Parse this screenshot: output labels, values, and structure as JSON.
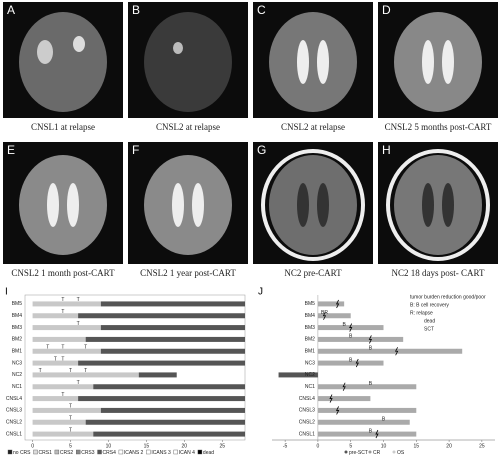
{
  "panels": [
    {
      "letter": "A",
      "caption": "CNSL1 at relapse"
    },
    {
      "letter": "B",
      "caption": "CNSL2 at relapse"
    },
    {
      "letter": "C",
      "caption": "CNSL2 at relapse"
    },
    {
      "letter": "D",
      "caption": "CNSL2 5 months post-CART"
    },
    {
      "letter": "E",
      "caption": "CNSL2 1 month post-CART"
    },
    {
      "letter": "F",
      "caption": "CNSL2 1 year post-CART"
    },
    {
      "letter": "G",
      "caption": "NC2 pre-CART"
    },
    {
      "letter": "H",
      "caption": "NC2  18 days post- CART"
    }
  ],
  "plot_i": {
    "letter": "I",
    "xlim": [
      -1,
      28
    ],
    "xticks": [
      0,
      5,
      10,
      15,
      20,
      25
    ],
    "rows": [
      {
        "label": "BM5",
        "crs": 9,
        "total": 28,
        "marks": [
          {
            "x": 4,
            "label": "T"
          },
          {
            "x": 6,
            "label": "T"
          }
        ]
      },
      {
        "label": "BM4",
        "crs": 6,
        "total": 28,
        "marks": [
          {
            "x": 4,
            "label": "T"
          }
        ]
      },
      {
        "label": "BM3",
        "crs": 9,
        "total": 28,
        "marks": [
          {
            "x": 6,
            "label": "T"
          }
        ]
      },
      {
        "label": "BM2",
        "crs": 7,
        "total": 28,
        "marks": []
      },
      {
        "label": "BM1",
        "crs": 9,
        "total": 28,
        "marks": [
          {
            "x": 2,
            "label": "T"
          },
          {
            "x": 4,
            "label": "T"
          },
          {
            "x": 7,
            "label": "T"
          }
        ]
      },
      {
        "label": "NC3",
        "crs": 6,
        "total": 28,
        "marks": [
          {
            "x": 3,
            "label": "T"
          },
          {
            "x": 4,
            "label": "T"
          }
        ]
      },
      {
        "label": "NC2",
        "crs": 14,
        "total": 19,
        "marks": [
          {
            "x": 1,
            "label": "T"
          },
          {
            "x": 5,
            "label": "T"
          },
          {
            "x": 7,
            "label": "T"
          }
        ]
      },
      {
        "label": "NC1",
        "crs": 8,
        "total": 28,
        "marks": [
          {
            "x": 6,
            "label": "T"
          }
        ]
      },
      {
        "label": "CNSL4",
        "crs": 6,
        "total": 28,
        "marks": [
          {
            "x": 4,
            "label": "T"
          }
        ]
      },
      {
        "label": "CNSL3",
        "crs": 9,
        "total": 28,
        "marks": [
          {
            "x": 5,
            "label": "T"
          }
        ]
      },
      {
        "label": "CNSL2",
        "crs": 7,
        "total": 28,
        "marks": [
          {
            "x": 5,
            "label": "T"
          }
        ]
      },
      {
        "label": "CNSL1",
        "crs": 8,
        "total": 28,
        "marks": [
          {
            "x": 5,
            "label": "T"
          }
        ]
      }
    ],
    "legend": [
      "no CRS",
      "CRS1",
      "CRS2",
      "CRS3",
      "CRS4",
      "ICANS 2",
      "ICANS 3",
      "ICAN 4",
      "dead"
    ]
  },
  "plot_j": {
    "letter": "J",
    "xlim": [
      -7,
      27
    ],
    "xticks": [
      -5,
      0,
      5,
      10,
      15,
      20,
      25
    ],
    "rows": [
      {
        "label": "BM5",
        "value": 4,
        "sct": 3,
        "marks": []
      },
      {
        "label": "BM4",
        "value": 5,
        "sct": 1,
        "marks": [
          {
            "x": 1,
            "label": "BR"
          }
        ]
      },
      {
        "label": "BM3",
        "value": 10,
        "sct": 5,
        "marks": [
          {
            "x": 4,
            "label": "B"
          }
        ]
      },
      {
        "label": "BM2",
        "value": 13,
        "sct": 8,
        "marks": [
          {
            "x": 5,
            "label": "B"
          }
        ]
      },
      {
        "label": "BM1",
        "value": 22,
        "sct": 12,
        "marks": [
          {
            "x": 8,
            "label": "B"
          }
        ]
      },
      {
        "label": "NC3",
        "value": 10,
        "sct": 6,
        "marks": [
          {
            "x": 5,
            "label": "B"
          }
        ]
      },
      {
        "label": "NC2",
        "value": -6,
        "sct": null,
        "marks": []
      },
      {
        "label": "NC1",
        "value": 15,
        "sct": 4,
        "marks": [
          {
            "x": 8,
            "label": "B"
          }
        ]
      },
      {
        "label": "CNSL4",
        "value": 8,
        "sct": 2,
        "marks": []
      },
      {
        "label": "CNSL3",
        "value": 15,
        "sct": 3,
        "marks": []
      },
      {
        "label": "CNSL2",
        "value": 14,
        "sct": null,
        "marks": [
          {
            "x": 10,
            "label": "B"
          }
        ]
      },
      {
        "label": "CNSL1",
        "value": 15,
        "sct": 9,
        "marks": [
          {
            "x": 8,
            "label": "B"
          }
        ]
      }
    ],
    "legend": [
      "tumor burden reduction good/poor",
      "B: B cell recovery",
      "R: relapse",
      "dead",
      "SCT"
    ],
    "bottom_legend": [
      "pre-SCT",
      "CR",
      "OS"
    ]
  }
}
